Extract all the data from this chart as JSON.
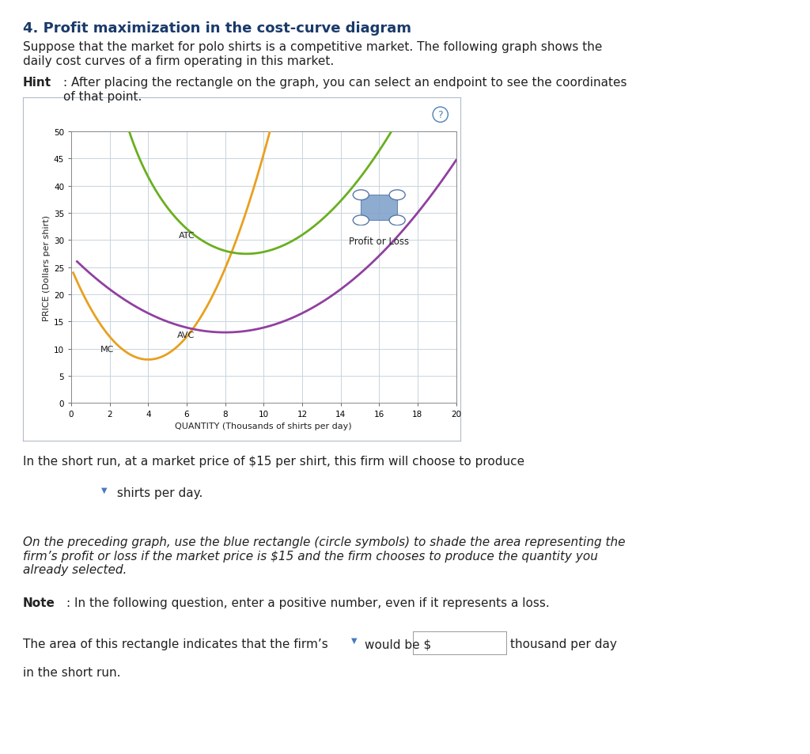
{
  "title": "4. Profit maximization in the cost-curve diagram",
  "para1": "Suppose that the market for polo shirts is a competitive market. The following graph shows the\ndaily cost curves of a firm operating in this market.",
  "hint_label": "Hint",
  "hint_text": ": After placing the rectangle on the graph, you can select an endpoint to see the coordinates\nof that point.",
  "xlabel": "QUANTITY (Thousands of shirts per day)",
  "ylabel": "PRICE (Dollars per shirt)",
  "xlim": [
    0,
    20
  ],
  "ylim": [
    0,
    50
  ],
  "xticks": [
    0,
    2,
    4,
    6,
    8,
    10,
    12,
    14,
    16,
    18,
    20
  ],
  "yticks": [
    0,
    5,
    10,
    15,
    20,
    25,
    30,
    35,
    40,
    45,
    50
  ],
  "mc_color": "#E8A020",
  "atc_color": "#6AAF20",
  "avc_color": "#9040A0",
  "legend_color": "#7090C0",
  "background_color": "#FFFFFF",
  "grid_color": "#C8D4DC",
  "title_color": "#1A3A6A",
  "body_text_color": "#222222",
  "bottom_text1": "In the short run, at a market price of $15 per shirt, this firm will choose to produce",
  "italic_text1": "On the preceding graph, use the blue rectangle (circle symbols) to shade the area representing the\nfirm’s profit or loss if the market price is $15 and the firm chooses to produce the quantity you\nalready selected.",
  "note_label": "Note",
  "note_text": ": In the following question, enter a positive number, even if it represents a loss.",
  "bottom_text3": "The area of this rectangle indicates that the firm’s",
  "bottom_text4": "would be $",
  "bottom_text5": "thousand per day",
  "bottom_text6": "in the short run."
}
